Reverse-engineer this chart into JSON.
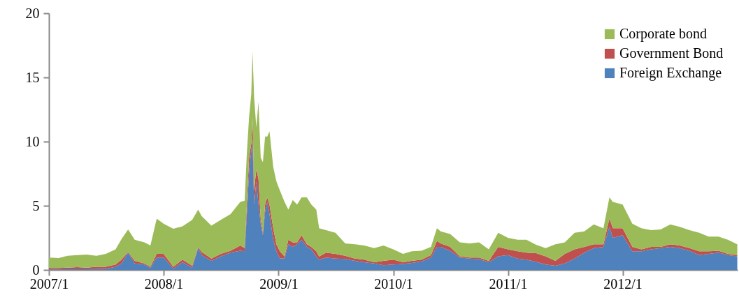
{
  "chart_data": {
    "type": "area",
    "stacked": true,
    "legend": "top right",
    "grid": false,
    "x": [
      "2007-01-01",
      "2007-02-01",
      "2007-03-01",
      "2007-04-01",
      "2007-05-01",
      "2007-06-01",
      "2007-07-01",
      "2007-08-01",
      "2007-08-20",
      "2007-09-10",
      "2007-10-01",
      "2007-11-01",
      "2007-11-20",
      "2007-12-10",
      "2008-01-01",
      "2008-02-01",
      "2008-03-01",
      "2008-04-01",
      "2008-04-20",
      "2008-05-01",
      "2008-06-01",
      "2008-07-01",
      "2008-08-01",
      "2008-09-01",
      "2008-09-15",
      "2008-09-22",
      "2008-09-29",
      "2008-10-06",
      "2008-10-10",
      "2008-10-15",
      "2008-10-22",
      "2008-10-29",
      "2008-11-05",
      "2008-11-12",
      "2008-11-19",
      "2008-11-26",
      "2008-12-03",
      "2008-12-15",
      "2008-12-25",
      "2009-01-05",
      "2009-01-20",
      "2009-02-01",
      "2009-02-15",
      "2009-03-01",
      "2009-03-15",
      "2009-04-01",
      "2009-04-15",
      "2009-05-01",
      "2009-05-10",
      "2009-06-01",
      "2009-07-01",
      "2009-08-01",
      "2009-09-01",
      "2009-10-01",
      "2009-11-01",
      "2009-12-01",
      "2010-01-01",
      "2010-02-01",
      "2010-03-01",
      "2010-04-01",
      "2010-05-01",
      "2010-05-20",
      "2010-06-01",
      "2010-07-01",
      "2010-08-01",
      "2010-09-01",
      "2010-10-01",
      "2010-11-01",
      "2010-12-01",
      "2011-01-01",
      "2011-02-01",
      "2011-03-01",
      "2011-04-01",
      "2011-05-01",
      "2011-06-01",
      "2011-07-01",
      "2011-08-01",
      "2011-09-01",
      "2011-10-01",
      "2011-11-01",
      "2011-11-20",
      "2011-12-01",
      "2012-01-01",
      "2012-02-01",
      "2012-03-01",
      "2012-04-01",
      "2012-05-01",
      "2012-06-01",
      "2012-07-01",
      "2012-08-01",
      "2012-09-01",
      "2012-10-01",
      "2012-11-01",
      "2012-12-01",
      "2012-12-31"
    ],
    "series": [
      {
        "name": "Foreign Exchange",
        "color": "#4f81bd",
        "values": [
          0.04,
          0.04,
          0.05,
          0.06,
          0.06,
          0.07,
          0.08,
          0.25,
          0.5,
          1.35,
          0.5,
          0.42,
          0.15,
          0.97,
          0.97,
          0.09,
          0.6,
          0.18,
          1.7,
          1.15,
          0.7,
          1.06,
          1.35,
          1.5,
          1.45,
          4.35,
          7.65,
          9.3,
          10.2,
          5.1,
          6.9,
          5.1,
          3.6,
          2.7,
          4.55,
          5.3,
          4.35,
          2.35,
          1.45,
          0.9,
          0.9,
          2.0,
          1.8,
          2.0,
          2.35,
          1.8,
          1.6,
          1.05,
          0.8,
          0.97,
          0.88,
          0.85,
          0.7,
          0.6,
          0.5,
          0.37,
          0.42,
          0.46,
          0.55,
          0.66,
          0.97,
          1.8,
          1.8,
          1.5,
          0.97,
          0.88,
          0.84,
          0.6,
          1.06,
          1.15,
          0.88,
          0.8,
          0.63,
          0.42,
          0.33,
          0.5,
          0.88,
          1.35,
          1.7,
          1.8,
          3.35,
          2.5,
          2.7,
          1.45,
          1.45,
          1.6,
          1.7,
          1.8,
          1.7,
          1.5,
          1.15,
          1.25,
          1.35,
          1.15,
          1.06
        ]
      },
      {
        "name": "Government Bond",
        "color": "#c0504d",
        "values": [
          0.11,
          0.11,
          0.13,
          0.16,
          0.12,
          0.17,
          0.16,
          0.17,
          0.3,
          0.05,
          0.2,
          0.08,
          0.09,
          0.28,
          0.28,
          0.15,
          0.2,
          0.15,
          0.1,
          0.25,
          0.18,
          0.19,
          0.15,
          0.4,
          0.25,
          0.75,
          1.1,
          0.55,
          1.7,
          1.1,
          0.95,
          2.0,
          0.4,
          0.2,
          0.55,
          0.35,
          0.75,
          0.9,
          0.55,
          0.55,
          0.15,
          0.35,
          0.35,
          0.15,
          0.35,
          0.2,
          0.2,
          0.4,
          0.25,
          0.38,
          0.37,
          0.25,
          0.18,
          0.2,
          0.1,
          0.33,
          0.38,
          0.14,
          0.15,
          0.14,
          0.18,
          0.45,
          0.27,
          0.3,
          0.09,
          0.09,
          0.13,
          0.1,
          0.74,
          0.45,
          0.57,
          0.55,
          0.67,
          0.64,
          0.37,
          0.75,
          0.72,
          0.45,
          0.3,
          0.2,
          0.65,
          0.75,
          0.55,
          0.35,
          0.15,
          0.2,
          0.1,
          0.2,
          0.2,
          0.2,
          0.3,
          0.2,
          0.15,
          0.1,
          0.09
        ]
      },
      {
        "name": "Corporate bond",
        "color": "#9bbb59",
        "values": [
          0.82,
          0.77,
          0.92,
          0.93,
          1.02,
          0.86,
          1.01,
          1.18,
          1.6,
          1.75,
          1.65,
          1.65,
          1.66,
          2.75,
          2.35,
          2.96,
          2.6,
          3.57,
          2.9,
          2.8,
          2.57,
          2.65,
          2.85,
          3.4,
          3.7,
          4.0,
          3.15,
          3.85,
          5.1,
          7.3,
          3.25,
          6.0,
          4.75,
          5.5,
          5.3,
          4.75,
          5.7,
          4.75,
          4.9,
          4.75,
          4.25,
          2.35,
          3.3,
          2.95,
          2.95,
          3.65,
          3.3,
          3.25,
          2.2,
          1.75,
          1.65,
          0.97,
          1.12,
          1.1,
          1.1,
          1.2,
          0.8,
          0.65,
          0.75,
          0.7,
          0.65,
          1.0,
          0.93,
          1.0,
          1.09,
          1.1,
          1.18,
          0.9,
          1.1,
          0.9,
          0.9,
          1.0,
          0.65,
          0.64,
          1.3,
          0.9,
          1.3,
          1.2,
          1.55,
          1.25,
          1.65,
          2.05,
          1.85,
          1.8,
          1.65,
          1.3,
          1.35,
          1.55,
          1.45,
          1.4,
          1.45,
          1.15,
          1.1,
          1.1,
          0.85
        ]
      }
    ],
    "xlim": [
      "2007-01-01",
      "2013-01-01"
    ],
    "xticks": [
      {
        "value": "2007-01-01",
        "label": "2007/1"
      },
      {
        "value": "2008-01-01",
        "label": "2008/1"
      },
      {
        "value": "2009-01-01",
        "label": "2009/1"
      },
      {
        "value": "2010-01-01",
        "label": "2010/1"
      },
      {
        "value": "2011-01-01",
        "label": "2011/1"
      },
      {
        "value": "2012-01-01",
        "label": "2012/1"
      }
    ],
    "ylim": [
      0,
      20
    ],
    "yticks": [
      0,
      5,
      10,
      15,
      20
    ]
  }
}
